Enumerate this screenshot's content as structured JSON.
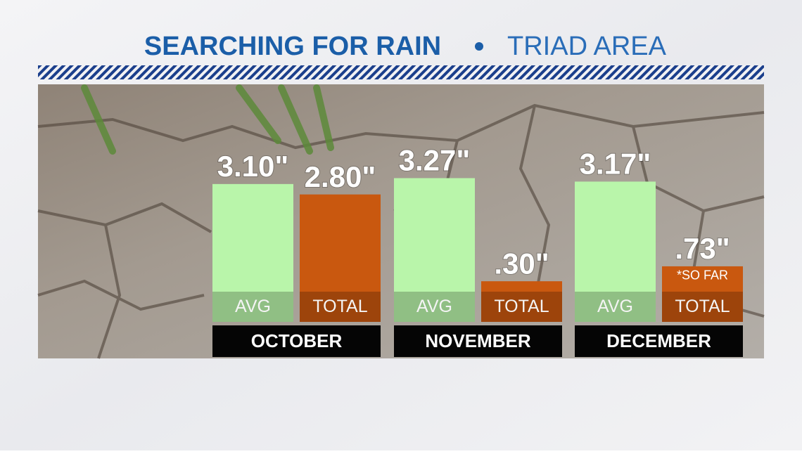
{
  "chart_data": {
    "type": "bar",
    "title": "SEARCHING FOR RAIN",
    "subtitle": "TRIAD AREA",
    "categories": [
      "OCTOBER",
      "NOVEMBER",
      "DECEMBER"
    ],
    "series": [
      {
        "name": "AVG",
        "color": "#b9f5aa",
        "values": [
          3.1,
          3.27,
          3.17
        ],
        "value_labels": [
          "3.10\"",
          "3.27\"",
          "3.17\""
        ]
      },
      {
        "name": "TOTAL",
        "color": "#c9580f",
        "values": [
          2.8,
          0.3,
          0.73
        ],
        "value_labels": [
          "2.80\"",
          ".30\"",
          ".73\""
        ]
      }
    ],
    "annotation": "*SO FAR"
  }
}
